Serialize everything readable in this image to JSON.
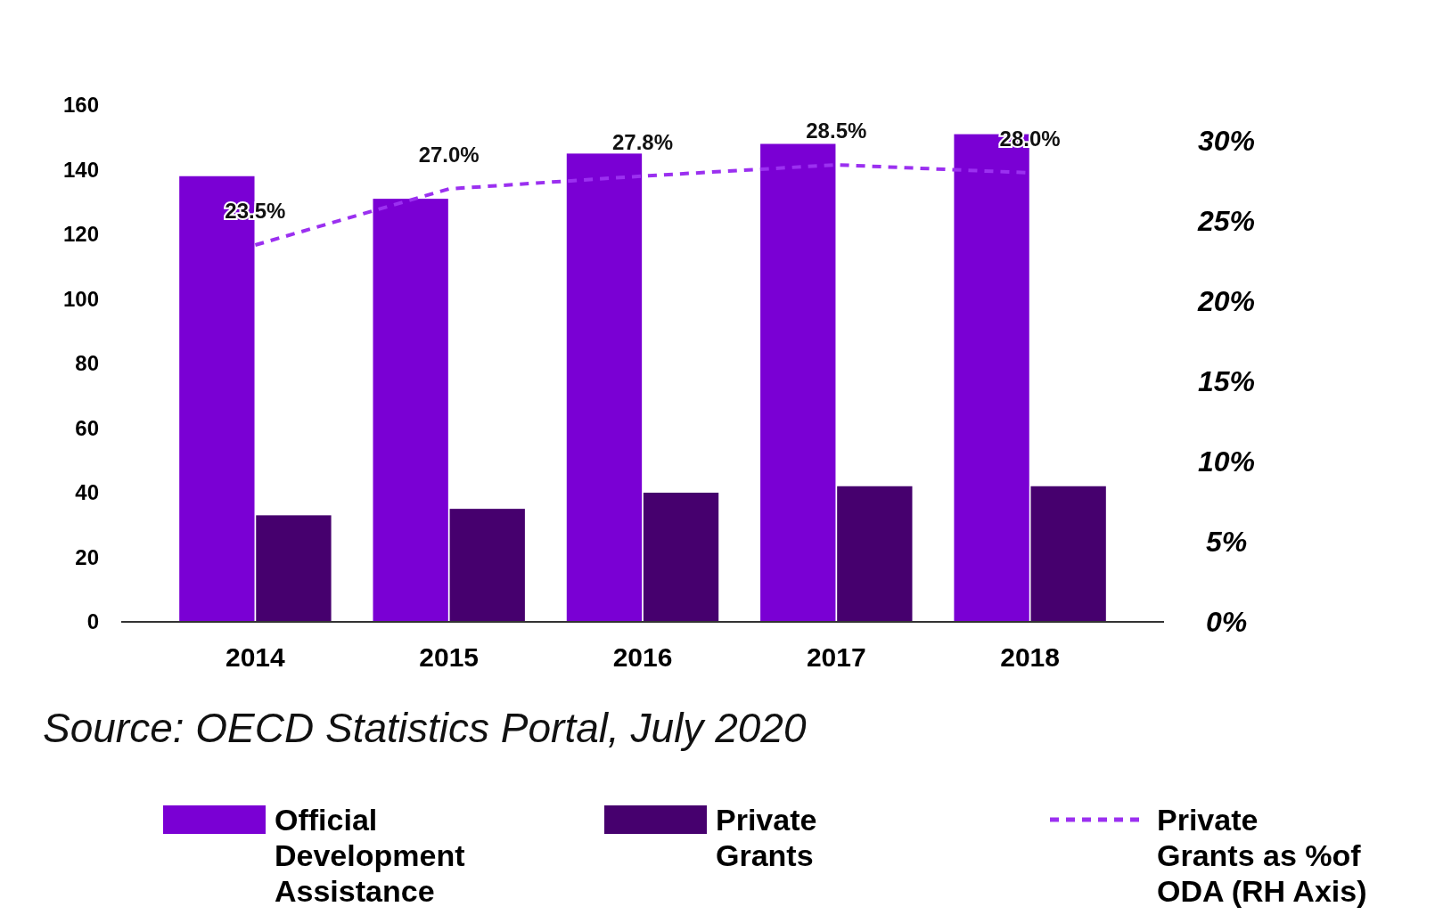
{
  "chart_data": {
    "type": "bar",
    "categories": [
      "2014",
      "2015",
      "2016",
      "2017",
      "2018"
    ],
    "series": [
      {
        "name": "Official Development Assistance",
        "color": "#7a00d4",
        "values": [
          138,
          131,
          145,
          148,
          151
        ]
      },
      {
        "name": "Private Grants",
        "color": "#46006e",
        "values": [
          33,
          35,
          40,
          42,
          42
        ]
      },
      {
        "name": "Private Grants as %of ODA (RH Axis)",
        "type": "line",
        "axis": "y2",
        "color": "#9b30f0",
        "line_style": "dashed",
        "marker": "none",
        "values": [
          23.5,
          27.0,
          27.8,
          28.5,
          28.0
        ],
        "value_labels": [
          "23.5%",
          "27.0%",
          "27.8%",
          "28.5%",
          "28.0%"
        ]
      }
    ],
    "ylim": [
      0,
      160
    ],
    "yticks": [
      0,
      20,
      40,
      60,
      80,
      100,
      120,
      140,
      160
    ],
    "y2lim": [
      0,
      30
    ],
    "y2ticks": [
      {
        "value": 0,
        "label": "0%"
      },
      {
        "value": 5,
        "label": "5%"
      },
      {
        "value": 10,
        "label": "10%"
      },
      {
        "value": 15,
        "label": "15%"
      },
      {
        "value": 20,
        "label": "20%"
      },
      {
        "value": 25,
        "label": "25%"
      },
      {
        "value": 30,
        "label": "30%"
      }
    ],
    "grid": false,
    "legend": "bottom",
    "annotations": [
      "Source: OECD Statistics Portal, July 2020"
    ]
  }
}
